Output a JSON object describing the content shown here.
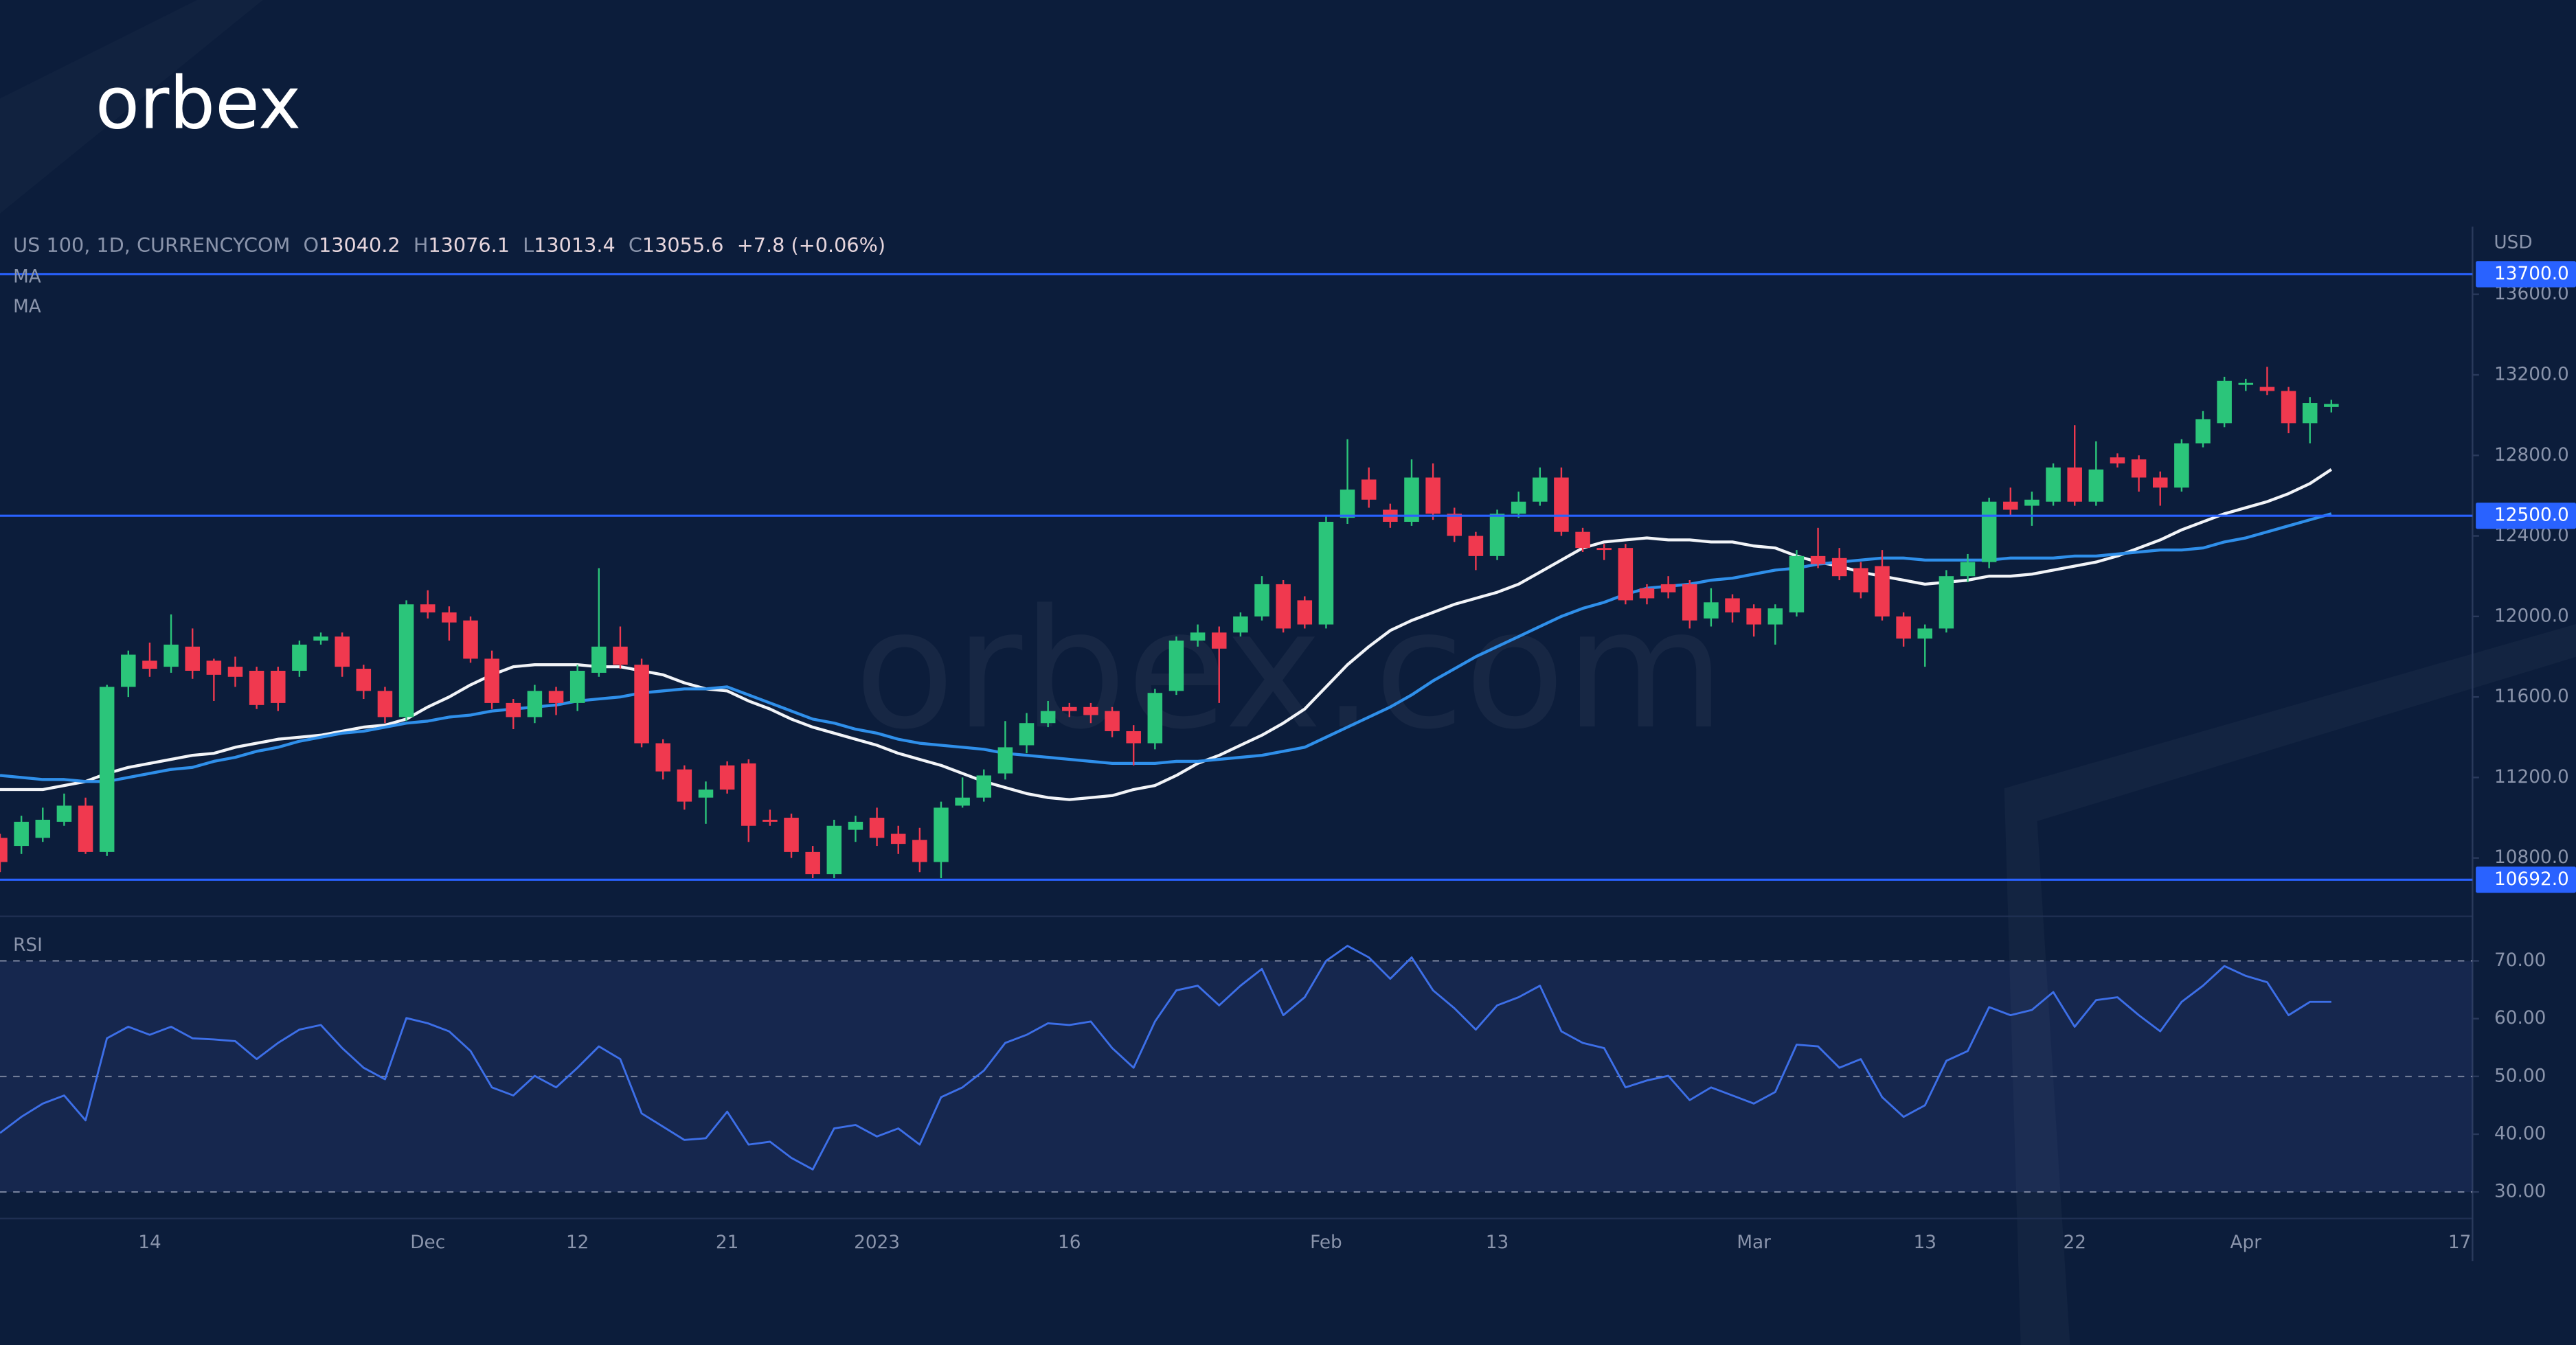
{
  "logo": "orbex",
  "watermark": "orbex.com",
  "chart_data": {
    "type": "candlestick",
    "symbol": "US 100, 1D, CURRENCYCOM",
    "ohlc_labels": [
      "O",
      "H",
      "L",
      "C"
    ],
    "change": "+7.8 (+0.06%)",
    "currency": "USD",
    "up_color": "#2bc57a",
    "down_color": "#f0394f",
    "categories": [
      null,
      null,
      null,
      null,
      null,
      null,
      null,
      "14",
      null,
      null,
      null,
      null,
      null,
      null,
      null,
      null,
      null,
      null,
      null,
      null,
      "Dec",
      null,
      null,
      null,
      null,
      null,
      null,
      "12",
      null,
      null,
      null,
      null,
      null,
      null,
      "21",
      null,
      null,
      null,
      null,
      null,
      null,
      "2023",
      null,
      null,
      null,
      null,
      null,
      null,
      null,
      null,
      "16",
      null,
      null,
      null,
      null,
      null,
      null,
      null,
      null,
      null,
      null,
      null,
      "Feb",
      null,
      null,
      null,
      null,
      null,
      null,
      null,
      "13",
      null,
      null,
      null,
      null,
      null,
      null,
      null,
      null,
      null,
      null,
      null,
      "Mar",
      null,
      null,
      null,
      null,
      null,
      null,
      null,
      "13",
      null,
      null,
      null,
      null,
      null,
      null,
      "22",
      null,
      null,
      null,
      null,
      null,
      null,
      null,
      "Apr",
      null,
      null,
      null,
      null,
      null,
      null,
      null,
      null,
      null,
      "17"
    ],
    "open": [
      10900,
      10860,
      10900,
      10980,
      11060,
      10830,
      11650,
      11780,
      11750,
      11850,
      11780,
      11750,
      11730,
      11730,
      11730,
      11880,
      11900,
      11740,
      11630,
      11500,
      12060,
      12020,
      11980,
      11790,
      11570,
      11500,
      11630,
      11570,
      11720,
      11850,
      11760,
      11370,
      11240,
      11100,
      11260,
      11270,
      10990,
      11000,
      10830,
      10720,
      10940,
      11000,
      10920,
      10890,
      10780,
      11060,
      11100,
      11220,
      11360,
      11470,
      11550,
      11550,
      11530,
      11430,
      11370,
      11630,
      11880,
      11920,
      11920,
      12000,
      12160,
      12080,
      11960,
      12490,
      12680,
      12530,
      12470,
      12690,
      12510,
      12400,
      12300,
      12510,
      12570,
      12690,
      12420,
      12340,
      12340,
      12140,
      12160,
      12160,
      11990,
      12090,
      12040,
      11960,
      12020,
      12300,
      12290,
      12240,
      12250,
      12000,
      11890,
      11940,
      12200,
      12270,
      12570,
      12550,
      12570,
      12740,
      12570,
      12790,
      12780,
      12690,
      12640,
      12860,
      12960,
      13150,
      13140,
      13120,
      12960,
      13040.2,
      null,
      null,
      null,
      null,
      null,
      null
    ],
    "high": [
      10920,
      11010,
      11050,
      11120,
      11100,
      11660,
      11830,
      11870,
      12010,
      11940,
      11790,
      11800,
      11750,
      11750,
      11880,
      11920,
      11920,
      11760,
      11650,
      12080,
      12130,
      12050,
      12000,
      11830,
      11590,
      11660,
      11650,
      11760,
      12240,
      11950,
      11790,
      11390,
      11260,
      11180,
      11280,
      11290,
      11040,
      11020,
      10860,
      10990,
      11010,
      11050,
      10960,
      10950,
      11080,
      11200,
      11240,
      11480,
      11520,
      11580,
      11570,
      11570,
      11550,
      11460,
      11640,
      11900,
      11960,
      11950,
      12020,
      12200,
      12180,
      12100,
      12500,
      12880,
      12740,
      12560,
      12780,
      12760,
      12540,
      12420,
      12530,
      12620,
      12740,
      12740,
      12440,
      12360,
      12360,
      12160,
      12200,
      12180,
      12140,
      12110,
      12060,
      12060,
      12330,
      12440,
      12340,
      12270,
      12330,
      12020,
      11960,
      12230,
      12310,
      12590,
      12640,
      12620,
      12760,
      12950,
      12870,
      12810,
      12800,
      12720,
      12880,
      13020,
      13190,
      13180,
      13240,
      13140,
      13090,
      13076.1,
      null,
      null,
      null,
      null,
      null,
      null
    ],
    "low": [
      10730,
      10820,
      10880,
      10960,
      10820,
      10810,
      11600,
      11700,
      11720,
      11690,
      11580,
      11650,
      11540,
      11530,
      11700,
      11860,
      11700,
      11590,
      11470,
      11480,
      11990,
      11880,
      11770,
      11540,
      11440,
      11470,
      11510,
      11530,
      11700,
      11740,
      11350,
      11190,
      11040,
      10970,
      11120,
      10880,
      10960,
      10800,
      10700,
      10700,
      10880,
      10860,
      10820,
      10730,
      10700,
      11050,
      11080,
      11190,
      11320,
      11450,
      11500,
      11470,
      11400,
      11260,
      11340,
      11610,
      11850,
      11570,
      11900,
      11980,
      11920,
      11940,
      11940,
      12460,
      12540,
      12440,
      12450,
      12480,
      12370,
      12230,
      12280,
      12490,
      12550,
      12400,
      12320,
      12280,
      12060,
      12060,
      12090,
      11940,
      11950,
      11970,
      11900,
      11860,
      12000,
      12240,
      12180,
      12090,
      11980,
      11850,
      11750,
      11920,
      12170,
      12240,
      12500,
      12450,
      12550,
      12550,
      12550,
      12740,
      12620,
      12550,
      12620,
      12840,
      12940,
      13120,
      13100,
      12910,
      12860,
      13013.4,
      null,
      null,
      null,
      null,
      null,
      null
    ],
    "close": [
      10780,
      10980,
      10990,
      11060,
      10830,
      11650,
      11810,
      11740,
      11860,
      11730,
      11710,
      11700,
      11560,
      11570,
      11860,
      11900,
      11750,
      11630,
      11500,
      12060,
      12020,
      11970,
      11790,
      11570,
      11500,
      11630,
      11570,
      11730,
      11850,
      11760,
      11370,
      11230,
      11080,
      11140,
      11140,
      10960,
      10980,
      10830,
      10720,
      10960,
      10980,
      10900,
      10870,
      10780,
      11050,
      11100,
      11210,
      11350,
      11470,
      11530,
      11530,
      11510,
      11430,
      11370,
      11620,
      11880,
      11920,
      11840,
      12000,
      12160,
      11940,
      11960,
      12470,
      12630,
      12580,
      12470,
      12690,
      12510,
      12400,
      12300,
      12510,
      12570,
      12690,
      12420,
      12340,
      12330,
      12080,
      12090,
      12120,
      11980,
      12070,
      12020,
      11960,
      12040,
      12300,
      12260,
      12200,
      12120,
      12000,
      11890,
      11940,
      12200,
      12270,
      12570,
      12530,
      12580,
      12740,
      12570,
      12730,
      12760,
      12690,
      12640,
      12860,
      12980,
      13170,
      13160,
      13120,
      12960,
      13060,
      13055.6,
      null,
      null,
      null,
      null,
      null,
      null
    ],
    "series": [
      {
        "name": "MA",
        "color": "#f2f4f8",
        "values": [
          11140,
          11140,
          11140,
          11160,
          11180,
          11220,
          11250,
          11270,
          11290,
          11310,
          11320,
          11350,
          11370,
          11390,
          11400,
          11410,
          11430,
          11450,
          11460,
          11490,
          11550,
          11600,
          11660,
          11710,
          11750,
          11760,
          11760,
          11760,
          11750,
          11750,
          11730,
          11710,
          11670,
          11640,
          11630,
          11580,
          11540,
          11490,
          11450,
          11420,
          11390,
          11360,
          11320,
          11290,
          11260,
          11220,
          11180,
          11150,
          11120,
          11100,
          11090,
          11100,
          11110,
          11140,
          11160,
          11210,
          11270,
          11310,
          11360,
          11410,
          11470,
          11540,
          11650,
          11760,
          11850,
          11930,
          11980,
          12020,
          12060,
          12090,
          12120,
          12160,
          12220,
          12280,
          12340,
          12370,
          12380,
          12390,
          12380,
          12380,
          12370,
          12370,
          12350,
          12340,
          12300,
          12270,
          12250,
          12220,
          12200,
          12180,
          12160,
          12170,
          12180,
          12200,
          12200,
          12210,
          12230,
          12250,
          12270,
          12300,
          12340,
          12380,
          12430,
          12470,
          12510,
          12540,
          12570,
          12610,
          12660,
          12730,
          null,
          null,
          null,
          null,
          null,
          null
        ]
      },
      {
        "name": "MA",
        "color": "#2f8fea",
        "values": [
          11210,
          11200,
          11190,
          11190,
          11180,
          11180,
          11200,
          11220,
          11240,
          11250,
          11280,
          11300,
          11330,
          11350,
          11380,
          11400,
          11420,
          11430,
          11450,
          11470,
          11480,
          11500,
          11510,
          11530,
          11540,
          11550,
          11560,
          11580,
          11590,
          11600,
          11620,
          11630,
          11640,
          11640,
          11650,
          11610,
          11570,
          11530,
          11490,
          11470,
          11440,
          11420,
          11390,
          11370,
          11360,
          11350,
          11340,
          11320,
          11310,
          11300,
          11290,
          11280,
          11270,
          11270,
          11270,
          11280,
          11280,
          11290,
          11300,
          11310,
          11330,
          11350,
          11400,
          11450,
          11500,
          11550,
          11610,
          11680,
          11740,
          11800,
          11850,
          11900,
          11950,
          12000,
          12040,
          12070,
          12110,
          12140,
          12150,
          12160,
          12180,
          12190,
          12210,
          12230,
          12240,
          12260,
          12270,
          12280,
          12290,
          12290,
          12280,
          12280,
          12280,
          12280,
          12290,
          12290,
          12290,
          12300,
          12300,
          12310,
          12320,
          12330,
          12330,
          12340,
          12370,
          12390,
          12420,
          12450,
          12480,
          12510,
          null,
          null,
          null,
          null,
          null,
          null
        ]
      }
    ],
    "levels": [
      {
        "value": 13700,
        "label": "13700.0"
      },
      {
        "value": 12500,
        "label": "12500.0"
      },
      {
        "value": 10692,
        "label": "10692.0"
      }
    ],
    "level_color": "#2962ff",
    "ylim": [
      10510,
      13920
    ],
    "yticks": [
      {
        "value": 10800,
        "label": "10800.0"
      },
      {
        "value": 11200,
        "label": "11200.0"
      },
      {
        "value": 11600,
        "label": "11600.0"
      },
      {
        "value": 12000,
        "label": "12000.0"
      },
      {
        "value": 12400,
        "label": "12400.0"
      },
      {
        "value": 12800,
        "label": "12800.0"
      },
      {
        "value": 13200,
        "label": "13200.0"
      },
      {
        "value": 13600,
        "label": "13600.0"
      }
    ],
    "rsi": {
      "name": "RSI",
      "color": "#3d6fe8",
      "values": [
        40.2,
        43.0,
        45.3,
        46.7,
        42.4,
        56.6,
        58.6,
        57.2,
        58.6,
        56.6,
        56.4,
        56.1,
        53.0,
        55.8,
        58.1,
        58.9,
        54.9,
        51.5,
        49.5,
        60.1,
        59.2,
        57.8,
        54.4,
        48.1,
        46.7,
        50.1,
        48.1,
        51.5,
        55.2,
        53.0,
        43.6,
        41.3,
        39.0,
        39.3,
        43.9,
        38.2,
        38.7,
        35.9,
        33.9,
        41.0,
        41.6,
        39.6,
        41.0,
        38.2,
        46.4,
        48.1,
        51.0,
        55.8,
        57.2,
        59.2,
        58.9,
        59.5,
        54.9,
        51.5,
        59.5,
        64.9,
        65.7,
        62.3,
        65.7,
        68.6,
        60.6,
        63.7,
        70.0,
        72.6,
        70.6,
        66.9,
        70.6,
        64.9,
        61.8,
        58.1,
        62.3,
        63.7,
        65.7,
        57.8,
        55.8,
        54.9,
        48.1,
        49.3,
        50.1,
        45.9,
        48.1,
        46.7,
        45.3,
        47.3,
        55.5,
        55.2,
        51.5,
        53.0,
        46.4,
        43.0,
        45.0,
        52.7,
        54.4,
        62.0,
        60.6,
        61.5,
        64.6,
        58.6,
        63.2,
        63.7,
        60.6,
        57.8,
        62.9,
        65.7,
        69.1,
        67.4,
        66.3,
        60.6,
        62.9,
        62.9,
        null,
        null,
        null,
        null,
        null,
        null
      ],
      "ylim": [
        25.4,
        77.7
      ],
      "yticks": [
        {
          "value": 30,
          "label": "30.00"
        },
        {
          "value": 40,
          "label": "40.00"
        },
        {
          "value": 50,
          "label": "50.00"
        },
        {
          "value": 60,
          "label": "60.00"
        },
        {
          "value": 70,
          "label": "70.00"
        }
      ],
      "levels": [
        30,
        50,
        70
      ]
    }
  }
}
